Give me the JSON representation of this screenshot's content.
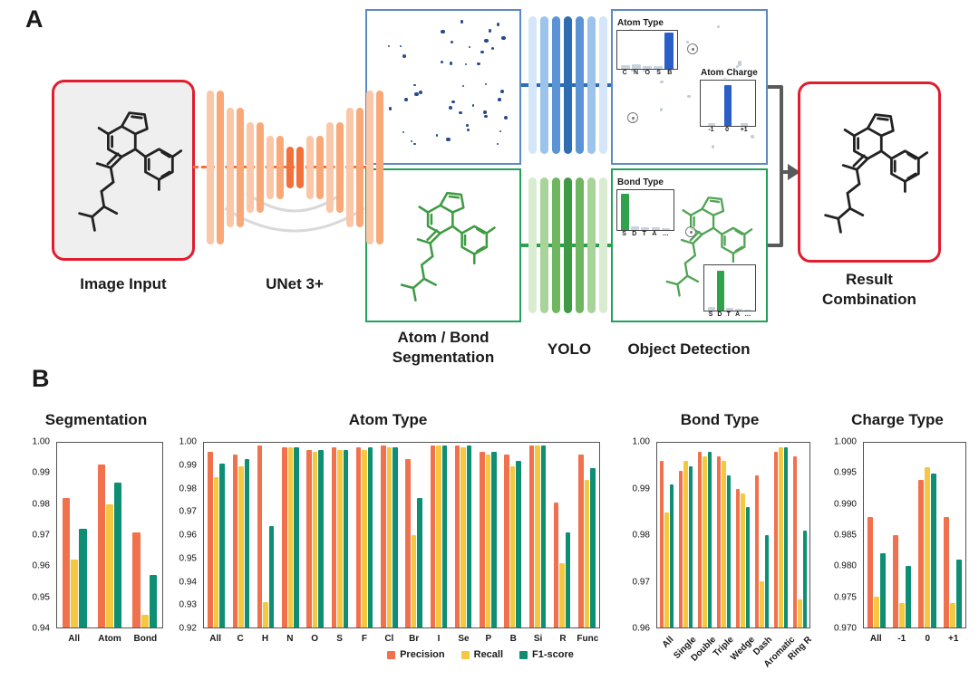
{
  "figure": {
    "panel_a": {
      "label": "A",
      "labels": {
        "image_input": "Image Input",
        "unet": "UNet 3+",
        "segmentation_line1": "Atom / Bond",
        "segmentation_line2": "Segmentation",
        "yolo": "YOLO",
        "object_detection": "Object Detection",
        "result_line1": "Result",
        "result_line2": "Combination"
      },
      "mini_charts": {
        "atom_type": {
          "title": "Atom Type",
          "labels": [
            "C",
            "N",
            "O",
            "S",
            "B"
          ],
          "values": [
            0.1,
            0.12,
            0.07,
            0.08,
            0.95
          ],
          "highlight": 4,
          "color": "#2b5fc7"
        },
        "atom_charge": {
          "title": "Atom Charge",
          "labels": [
            "-1",
            "0",
            "+1"
          ],
          "values": [
            0.06,
            0.9,
            0.07
          ],
          "highlight": 1,
          "color": "#2b5fc7"
        },
        "bond_type": {
          "title": "Bond Type",
          "labels": [
            "S",
            "D",
            "T",
            "A",
            "…"
          ],
          "values": [
            0.92,
            0.1,
            0.06,
            0.07,
            0.04
          ],
          "highlight": 0,
          "color": "#2fa24b"
        },
        "bond_type_2": {
          "title": "",
          "labels": [
            "S",
            "D",
            "T",
            "A",
            "…"
          ],
          "values": [
            0.08,
            0.88,
            0.06,
            0.05,
            0.03
          ],
          "highlight": 1,
          "color": "#2fa24b"
        }
      }
    },
    "panel_b": {
      "label": "B"
    }
  },
  "colors": {
    "highlight_red": "#e11d2e",
    "unet_orange": "#f2703a",
    "segmentation_blue": "#5b8ac5",
    "segmentation_green": "#21a15c",
    "precision": "#f2714d",
    "recall": "#f5c842",
    "f1_score": "#0e8f74"
  },
  "legend": [
    {
      "name": "Precision",
      "color": "#f2714d"
    },
    {
      "name": "Recall",
      "color": "#f5c842"
    },
    {
      "name": "F1-score",
      "color": "#0e8f74"
    }
  ],
  "chart_data": [
    {
      "type": "bar",
      "title": "Segmentation",
      "categories": [
        "All",
        "Atom",
        "Bond"
      ],
      "series": [
        {
          "name": "Precision",
          "values": [
            0.982,
            0.993,
            0.971
          ]
        },
        {
          "name": "Recall",
          "values": [
            0.962,
            0.98,
            0.944
          ]
        },
        {
          "name": "F1-score",
          "values": [
            0.972,
            0.987,
            0.957
          ]
        }
      ],
      "ylim": [
        0.94,
        1.0
      ],
      "yticks": [
        "1.00",
        "0.99",
        "0.98",
        "0.97",
        "0.96",
        "0.95",
        "0.94"
      ],
      "xlabel_rotate": false,
      "grid": false,
      "legend_position": "below-atom-type-chart"
    },
    {
      "type": "bar",
      "title": "Atom Type",
      "categories": [
        "All",
        "C",
        "H",
        "N",
        "O",
        "S",
        "F",
        "Cl",
        "Br",
        "I",
        "Se",
        "P",
        "B",
        "Si",
        "R",
        "Func"
      ],
      "series": [
        {
          "name": "Precision",
          "values": [
            0.996,
            0.995,
            0.999,
            0.998,
            0.997,
            0.998,
            0.998,
            0.999,
            0.993,
            0.999,
            0.999,
            0.996,
            0.995,
            0.999,
            0.974,
            0.995
          ]
        },
        {
          "name": "Recall",
          "values": [
            0.985,
            0.99,
            0.931,
            0.998,
            0.996,
            0.997,
            0.997,
            0.998,
            0.96,
            0.999,
            0.998,
            0.995,
            0.99,
            0.999,
            0.948,
            0.984
          ]
        },
        {
          "name": "F1-score",
          "values": [
            0.991,
            0.993,
            0.964,
            0.998,
            0.997,
            0.997,
            0.998,
            0.998,
            0.976,
            0.999,
            0.999,
            0.996,
            0.992,
            0.999,
            0.961,
            0.989
          ]
        }
      ],
      "ylim": [
        0.92,
        1.0
      ],
      "yticks": [
        "1.00",
        "0.99",
        "0.98",
        "0.97",
        "0.96",
        "0.95",
        "0.94",
        "0.93",
        "0.92"
      ],
      "xlabel_rotate": false,
      "grid": false
    },
    {
      "type": "bar",
      "title": "Bond Type",
      "categories": [
        "All",
        "Single",
        "Double",
        "Triple",
        "Wedge",
        "Dash",
        "Aromatic",
        "Ring R"
      ],
      "series": [
        {
          "name": "Precision",
          "values": [
            0.996,
            0.994,
            0.998,
            0.997,
            0.99,
            0.993,
            0.998,
            0.997
          ]
        },
        {
          "name": "Recall",
          "values": [
            0.985,
            0.996,
            0.997,
            0.996,
            0.989,
            0.97,
            0.999,
            0.966
          ]
        },
        {
          "name": "F1-score",
          "values": [
            0.991,
            0.995,
            0.998,
            0.993,
            0.986,
            0.98,
            0.999,
            0.981
          ]
        }
      ],
      "ylim": [
        0.96,
        1.0
      ],
      "yticks": [
        "1.00",
        "0.99",
        "0.98",
        "0.97",
        "0.96"
      ],
      "xlabel_rotate": true,
      "grid": false
    },
    {
      "type": "bar",
      "title": "Charge Type",
      "categories": [
        "All",
        "-1",
        "0",
        "+1"
      ],
      "series": [
        {
          "name": "Precision",
          "values": [
            0.988,
            0.985,
            0.994,
            0.988
          ]
        },
        {
          "name": "Recall",
          "values": [
            0.975,
            0.974,
            0.996,
            0.974
          ]
        },
        {
          "name": "F1-score",
          "values": [
            0.982,
            0.98,
            0.995,
            0.981
          ]
        }
      ],
      "ylim": [
        0.97,
        1.0
      ],
      "yticks": [
        "1.000",
        "0.995",
        "0.990",
        "0.985",
        "0.980",
        "0.975",
        "0.970"
      ],
      "xlabel_rotate": false,
      "grid": false
    }
  ]
}
